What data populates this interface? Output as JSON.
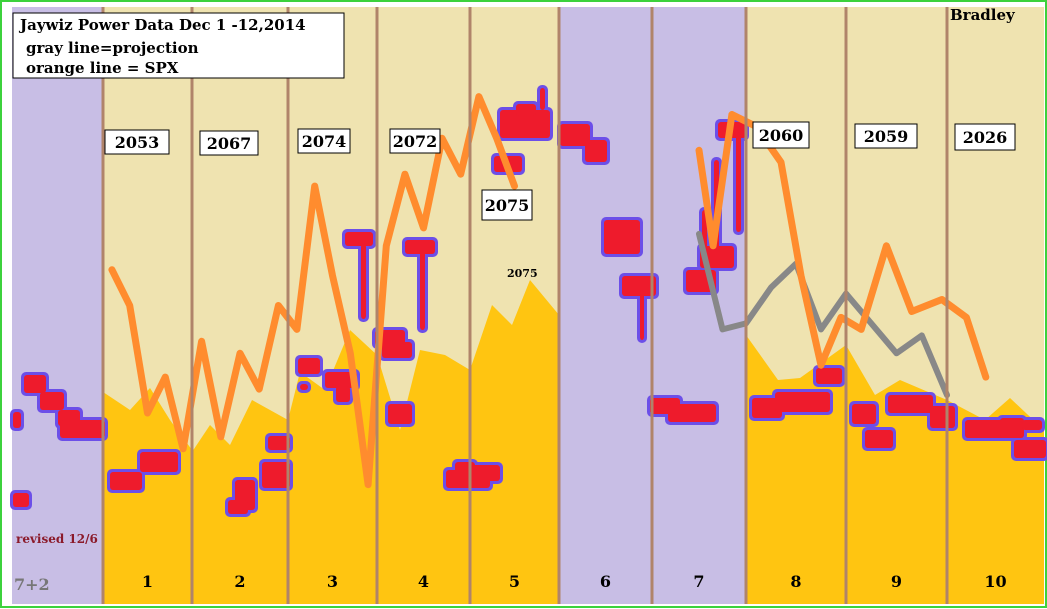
{
  "chart_data": {
    "type": "area",
    "title_lines": [
      "Jaywiz Power Data Dec 1 -12,2014",
      "gray line=projection",
      "orange line = SPX"
    ],
    "author": "Bradley",
    "revision_note": "revised 12/6",
    "corner_label": "7+2",
    "day_labels": [
      "1",
      "2",
      "3",
      "4",
      "5",
      "6",
      "7",
      "8",
      "9",
      "10"
    ],
    "value_labels": [
      "2053",
      "2067",
      "2074",
      "2072",
      "2075",
      "2060",
      "2059",
      "2026"
    ],
    "peak_label": "2075",
    "colors": {
      "power_area": "#FFC511",
      "background_day": "#EFE3B0",
      "weekend": "#C8BEE5",
      "spx_line": "#FF8C2E",
      "projection_line": "#888888",
      "red_blob": "#EE1B2C",
      "blob_halo": "#6C4FE8",
      "day_divider": "#B0846A"
    },
    "series": [
      {
        "name": "orange line = SPX",
        "x": [
          1.1,
          1.3,
          1.5,
          1.7,
          1.9,
          2.1,
          2.3,
          2.5,
          2.7,
          2.9,
          3.1,
          3.3,
          3.5,
          3.7,
          3.9,
          4.1,
          4.3,
          4.5,
          4.7,
          4.9,
          5.1,
          5.3,
          5.5
        ],
        "y": [
          56,
          50,
          32,
          38,
          26,
          44,
          28,
          42,
          36,
          50,
          46,
          70,
          55,
          42,
          20,
          60,
          72,
          63,
          78,
          72,
          85,
          78,
          70
        ]
      },
      {
        "name": "gray line=projection",
        "x": [
          7.5,
          7.75,
          8.0,
          8.25,
          8.5,
          8.75,
          9.0,
          9.25,
          9.5,
          9.75,
          10.0
        ],
        "y": [
          62,
          46,
          47,
          53,
          57,
          46,
          52,
          47,
          42,
          45,
          35
        ]
      },
      {
        "name": "orange line = SPX",
        "x": [
          7.5,
          7.65,
          7.85,
          8.1,
          8.35,
          8.55,
          8.75,
          8.95,
          9.15,
          9.4,
          9.65,
          9.95,
          10.2,
          10.4
        ],
        "y": [
          76,
          60,
          82,
          80,
          74,
          55,
          40,
          48,
          46,
          60,
          49,
          51,
          48,
          38
        ]
      }
    ]
  }
}
